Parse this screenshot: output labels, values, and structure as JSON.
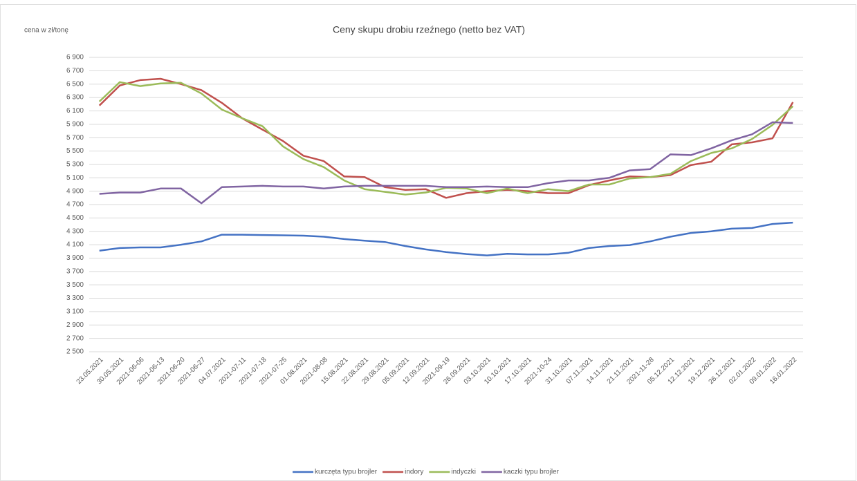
{
  "chart_data": {
    "type": "line",
    "title": "Ceny skupu drobiu rzeźnego (netto bez VAT)",
    "y_label": "cena w zł/tonę",
    "categories": [
      "23.05.2021",
      "30.05.2021",
      "2021-06-06",
      "2021-06-13",
      "2021-06-20",
      "2021-06-27",
      "04.07.2021",
      "2021-07-11",
      "2021-07-18",
      "2021-07-25",
      "01.08.2021",
      "2021-08-08",
      "15.08.2021",
      "22.08.2021",
      "29.08.2021",
      "05.09.2021",
      "12.09.2021",
      "2021-09-19",
      "26.09.2021",
      "03.10.2021",
      "10.10.2021",
      "17.10.2021",
      "2021-10-24",
      "31.10.2021",
      "07.11.2021",
      "14.11.2021",
      "21.11.2021",
      "2021-11-28",
      "05.12.2021",
      "12.12.2021",
      "19.12.2021",
      "26.12.2021",
      "02.01.2022",
      "09.01.2022",
      "16.01.2022"
    ],
    "series": [
      {
        "name": "kurczęta typu brojler",
        "color": "#4472c4",
        "values": [
          4010,
          4050,
          4060,
          4060,
          4100,
          4150,
          4250,
          4250,
          4245,
          4240,
          4235,
          4220,
          4185,
          4160,
          4140,
          4080,
          4030,
          3990,
          3960,
          3940,
          3965,
          3955,
          3955,
          3980,
          4050,
          4080,
          4095,
          4150,
          4220,
          4275,
          4300,
          4340,
          4350,
          4410,
          4430
        ]
      },
      {
        "name": "indory",
        "color": "#c0504d",
        "values": [
          6180,
          6480,
          6560,
          6580,
          6500,
          6410,
          6220,
          5990,
          5820,
          5650,
          5430,
          5350,
          5120,
          5110,
          4960,
          4920,
          4930,
          4800,
          4870,
          4900,
          4920,
          4900,
          4870,
          4870,
          4990,
          5060,
          5120,
          5110,
          5140,
          5290,
          5340,
          5600,
          5630,
          5690,
          6230
        ]
      },
      {
        "name": "indyczki",
        "color": "#9bbb59",
        "values": [
          6240,
          6530,
          6470,
          6510,
          6520,
          6360,
          6120,
          5990,
          5870,
          5570,
          5380,
          5260,
          5060,
          4930,
          4890,
          4850,
          4880,
          4950,
          4940,
          4870,
          4940,
          4870,
          4930,
          4900,
          5000,
          5000,
          5090,
          5110,
          5160,
          5350,
          5470,
          5540,
          5680,
          5890,
          6170
        ]
      },
      {
        "name": "kaczki typu brojler",
        "color": "#8064a2",
        "values": [
          4860,
          4880,
          4880,
          4940,
          4940,
          4720,
          4960,
          4970,
          4980,
          4970,
          4970,
          4940,
          4970,
          4980,
          4980,
          4980,
          4980,
          4960,
          4960,
          4970,
          4960,
          4960,
          5020,
          5060,
          5060,
          5100,
          5210,
          5230,
          5450,
          5440,
          5540,
          5660,
          5750,
          5930,
          5920
        ]
      }
    ],
    "ylim": [
      2500,
      6900
    ],
    "yticks": [
      {
        "value": 2500,
        "label": "2 500"
      },
      {
        "value": 2700,
        "label": "2 700"
      },
      {
        "value": 2900,
        "label": "2 900"
      },
      {
        "value": 3100,
        "label": "3 100"
      },
      {
        "value": 3300,
        "label": "3 300"
      },
      {
        "value": 3500,
        "label": "3 500"
      },
      {
        "value": 3700,
        "label": "3 700"
      },
      {
        "value": 3900,
        "label": "3 900"
      },
      {
        "value": 4100,
        "label": "4 100"
      },
      {
        "value": 4300,
        "label": "4 300"
      },
      {
        "value": 4500,
        "label": "4 500"
      },
      {
        "value": 4700,
        "label": "4 700"
      },
      {
        "value": 4900,
        "label": "4 900"
      },
      {
        "value": 5100,
        "label": "5 100"
      },
      {
        "value": 5300,
        "label": "5 300"
      },
      {
        "value": 5500,
        "label": "5 500"
      },
      {
        "value": 5700,
        "label": "5 700"
      },
      {
        "value": 5900,
        "label": "5 900"
      },
      {
        "value": 6100,
        "label": "6 100"
      },
      {
        "value": 6300,
        "label": "6 300"
      },
      {
        "value": 6500,
        "label": "6 500"
      },
      {
        "value": 6700,
        "label": "6 700"
      },
      {
        "value": 6900,
        "label": "6 900"
      }
    ],
    "grid": true,
    "legend": "bottom"
  }
}
